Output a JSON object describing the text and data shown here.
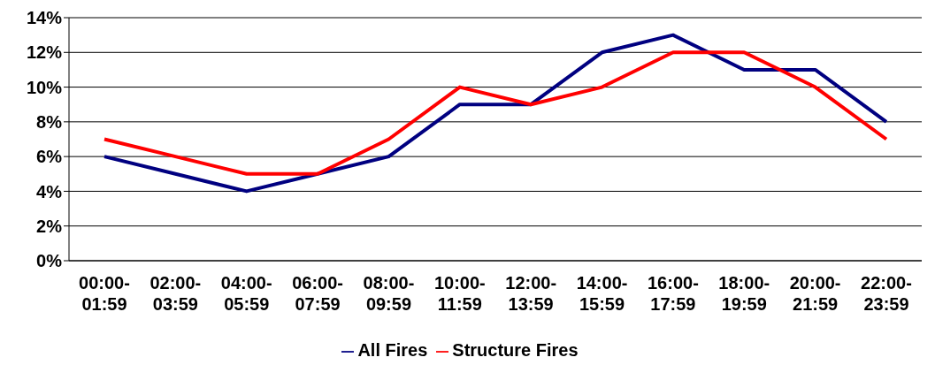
{
  "chart_data": {
    "type": "line",
    "categories": [
      "00:00-01:59",
      "02:00-03:59",
      "04:00-05:59",
      "06:00-07:59",
      "08:00-09:59",
      "10:00-11:59",
      "12:00-13:59",
      "14:00-15:59",
      "16:00-17:59",
      "18:00-19:59",
      "20:00-21:59",
      "22:00-23:59"
    ],
    "series": [
      {
        "name": "All Fires",
        "color": "#000080",
        "values": [
          6,
          5,
          4,
          5,
          6,
          9,
          9,
          12,
          13,
          11,
          11,
          8
        ]
      },
      {
        "name": "Structure Fires",
        "color": "#ff0000",
        "values": [
          7,
          6,
          5,
          5,
          7,
          10,
          9,
          10,
          12,
          12,
          10,
          7
        ]
      }
    ],
    "ylim": [
      0,
      14
    ],
    "yticks": [
      {
        "value": 0,
        "label": "0%"
      },
      {
        "value": 2,
        "label": "2%"
      },
      {
        "value": 4,
        "label": "4%"
      },
      {
        "value": 6,
        "label": "6%"
      },
      {
        "value": 8,
        "label": "8%"
      },
      {
        "value": 10,
        "label": "10%"
      },
      {
        "value": 12,
        "label": "12%"
      },
      {
        "value": 14,
        "label": "14%"
      }
    ],
    "grid": "y",
    "legend": "bottom",
    "marker": "none",
    "line_style": "solid"
  }
}
